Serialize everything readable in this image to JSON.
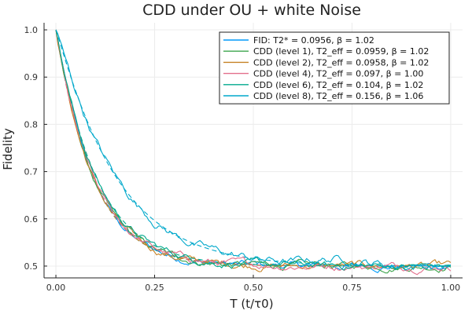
{
  "chart_data": {
    "type": "line",
    "title": "CDD under OU + white Noise",
    "xlabel": "T (t/τ0)",
    "ylabel": "Fidelity",
    "xlim": [
      -0.03,
      1.03
    ],
    "ylim": [
      0.475,
      1.015
    ],
    "xticks": [
      0.0,
      0.25,
      0.5,
      0.75,
      1.0
    ],
    "xtick_labels": [
      "0.00",
      "0.25",
      "0.50",
      "0.75",
      "1.00"
    ],
    "yticks": [
      0.5,
      0.6,
      0.7,
      0.8,
      0.9,
      1.0
    ],
    "ytick_labels": [
      "0.5",
      "0.6",
      "0.7",
      "0.8",
      "0.9",
      "1.0"
    ],
    "grid": true,
    "legend_position": "top-right",
    "series": [
      {
        "name": "FID: T2* = 0.0956, β = 1.02",
        "color": "#009AFA",
        "T2": 0.0956,
        "beta": 1.02
      },
      {
        "name": "CDD (level 1), T2_eff = 0.0959, β = 1.02",
        "color": "#3DA44D",
        "T2": 0.0959,
        "beta": 1.02
      },
      {
        "name": "CDD (level 2), T2_eff = 0.0958, β = 1.02",
        "color": "#C68225",
        "T2": 0.0958,
        "beta": 1.02
      },
      {
        "name": "CDD (level 4), T2_eff = 0.097, β = 1.00",
        "color": "#E26F8C",
        "T2": 0.097,
        "beta": 1.0
      },
      {
        "name": "CDD (level 6), T2_eff = 0.104, β = 1.02",
        "color": "#00A98D",
        "T2": 0.104,
        "beta": 1.02
      },
      {
        "name": "CDD (level 8), T2_eff = 0.156, β = 1.06",
        "color": "#00A8CB",
        "T2": 0.156,
        "beta": 1.06
      }
    ]
  }
}
